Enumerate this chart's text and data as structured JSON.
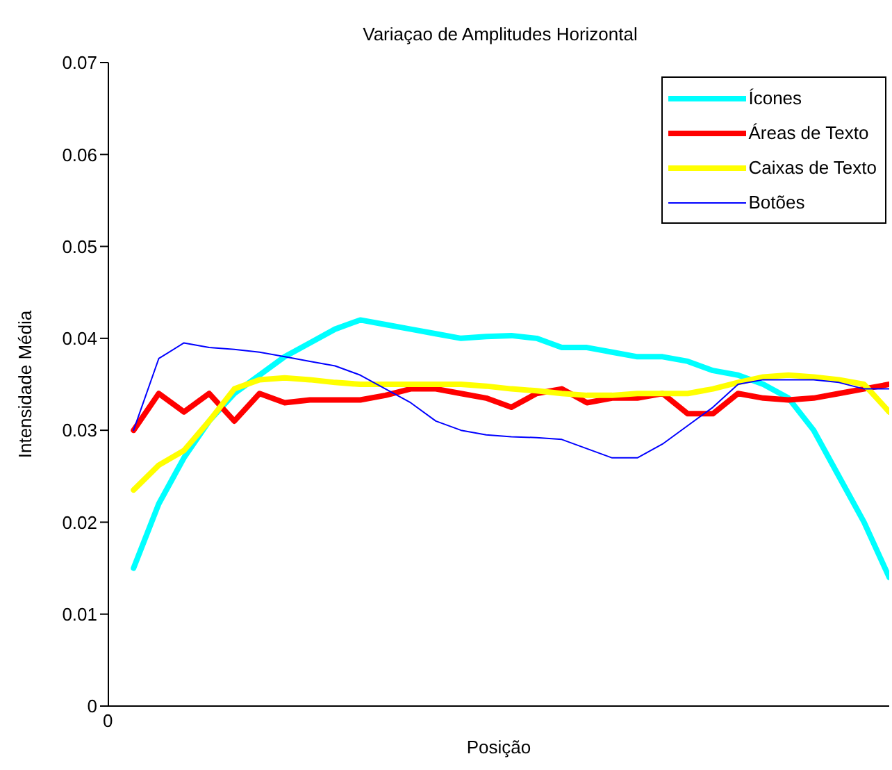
{
  "chart_data": {
    "type": "line",
    "title": "Variaçao de Amplitudes Horizontal",
    "xlabel": "Posição",
    "ylabel": "Intensidade Média",
    "categories": [
      null,
      null,
      null,
      null,
      null,
      null,
      null,
      null,
      null,
      null,
      null,
      null,
      null,
      null,
      null,
      null,
      null,
      null,
      null,
      null,
      null,
      null,
      null,
      null,
      null,
      null,
      null,
      null,
      null,
      null,
      null
    ],
    "annotations": [
      "0"
    ],
    "ylim": [
      0,
      0.07
    ],
    "yticks": [
      0,
      0.01,
      0.02,
      0.03,
      0.04,
      0.05,
      0.06,
      0.07
    ],
    "grid": false,
    "legend": "top right",
    "marker": "none",
    "line_style": "solid",
    "series": [
      {
        "name": "Ícones",
        "color": "#00ffff",
        "values": [
          0.015,
          0.022,
          0.027,
          0.031,
          0.034,
          0.036,
          0.038,
          0.0395,
          0.041,
          0.042,
          0.0415,
          0.041,
          0.0405,
          0.04,
          0.0402,
          0.0403,
          0.04,
          0.039,
          0.039,
          0.0385,
          0.038,
          0.038,
          0.0375,
          0.0365,
          0.036,
          0.035,
          0.0335,
          0.03,
          0.025,
          0.02,
          0.014
        ]
      },
      {
        "name": "Áreas de Texto",
        "color": "#ff0000",
        "values": [
          0.03,
          0.034,
          0.032,
          0.034,
          0.031,
          0.034,
          0.033,
          0.0333,
          0.0333,
          0.0333,
          0.0338,
          0.0345,
          0.0345,
          0.034,
          0.0335,
          0.0325,
          0.034,
          0.0345,
          0.033,
          0.0335,
          0.0335,
          0.034,
          0.0318,
          0.0318,
          0.034,
          0.0335,
          0.0333,
          0.0335,
          0.034,
          0.0345,
          0.035
        ]
      },
      {
        "name": "Caixas de Texto",
        "color": "#ffff00",
        "values": [
          0.0235,
          0.0262,
          0.0278,
          0.031,
          0.0345,
          0.0355,
          0.0357,
          0.0355,
          0.0352,
          0.035,
          0.035,
          0.035,
          0.035,
          0.035,
          0.0348,
          0.0345,
          0.0343,
          0.034,
          0.0338,
          0.0338,
          0.034,
          0.034,
          0.034,
          0.0345,
          0.0352,
          0.0358,
          0.036,
          0.0358,
          0.0355,
          0.035,
          0.032
        ]
      },
      {
        "name": "Botões",
        "color": "#0000ff",
        "values": [
          0.03,
          0.0378,
          0.0395,
          0.039,
          0.0388,
          0.0385,
          0.038,
          0.0375,
          0.037,
          0.036,
          0.0345,
          0.033,
          0.031,
          0.03,
          0.0295,
          0.0293,
          0.0292,
          0.029,
          0.028,
          0.027,
          0.027,
          0.0285,
          0.0305,
          0.0325,
          0.035,
          0.0355,
          0.0355,
          0.0355,
          0.0352,
          0.0345,
          0.0345
        ]
      }
    ]
  }
}
